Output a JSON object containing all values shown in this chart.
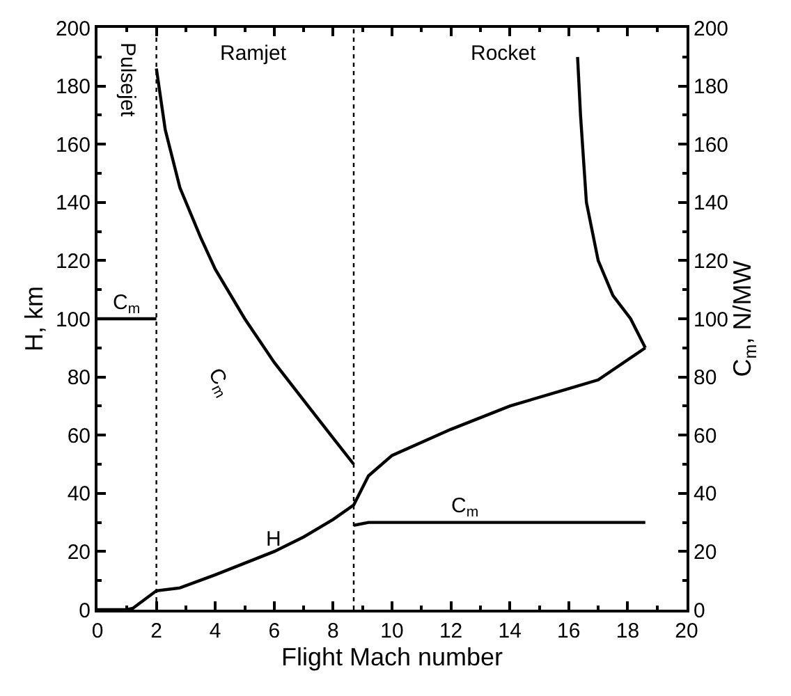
{
  "chart_data": {
    "type": "line",
    "xlabel": "Flight Mach number",
    "ylabel": "H, km",
    "y2label": "C$_{m}$, N/MW",
    "xlim": [
      0,
      20
    ],
    "xticks": [
      0,
      2,
      4,
      6,
      8,
      10,
      12,
      14,
      16,
      18,
      20
    ],
    "ylim": [
      0,
      200
    ],
    "yticks": [
      0,
      20,
      40,
      60,
      80,
      100,
      120,
      140,
      160,
      180,
      200
    ],
    "y2lim": [
      0,
      200
    ],
    "y2ticks": [
      0,
      20,
      40,
      60,
      80,
      100,
      120,
      140,
      160,
      180,
      200
    ],
    "grid": false,
    "marker": "none",
    "line_style": "solid",
    "series": [
      {
        "name": "H",
        "color": "#000000",
        "x": [
          0,
          1,
          1.2,
          2,
          2.8,
          4,
          6,
          7,
          8,
          8.7,
          9.2,
          10,
          12,
          14,
          16,
          17,
          18.6
        ],
        "values": [
          0,
          0,
          0.5,
          6.5,
          7.5,
          12,
          20,
          25,
          31,
          36,
          46,
          53,
          62,
          70,
          76,
          79,
          90
        ]
      },
      {
        "name": "C$_{m}$",
        "color": "#000000",
        "axis": "y2",
        "x": [
          0,
          2
        ],
        "values": [
          100,
          100
        ]
      },
      {
        "name": "C$_{m}$",
        "color": "#000000",
        "axis": "y2",
        "x": [
          2,
          2.3,
          2.8,
          3.5,
          4,
          5,
          6,
          7,
          8,
          8.7
        ],
        "values": [
          186,
          165,
          145,
          128,
          117,
          100,
          85,
          72,
          59,
          50
        ]
      },
      {
        "color": "#000000",
        "axis": "y2",
        "x": [
          16.3,
          16.4,
          16.6,
          17,
          17.5,
          18.1,
          18.6
        ],
        "values": [
          190,
          170,
          140,
          120,
          108,
          100,
          90
        ]
      },
      {
        "name": "C$_{m}$",
        "color": "#000000",
        "axis": "y2",
        "x": [
          8.7,
          9.2,
          18.6
        ],
        "values": [
          29,
          30,
          30
        ]
      }
    ],
    "ref_lines": [
      {
        "axis": "x",
        "value": 2,
        "line_style": "dotted",
        "color": "#000000"
      },
      {
        "axis": "x",
        "value": 8.7,
        "line_style": "dotted",
        "color": "#000000"
      }
    ],
    "annotations": [
      "Pulsejet",
      "Ramjet",
      "Rocket"
    ]
  }
}
